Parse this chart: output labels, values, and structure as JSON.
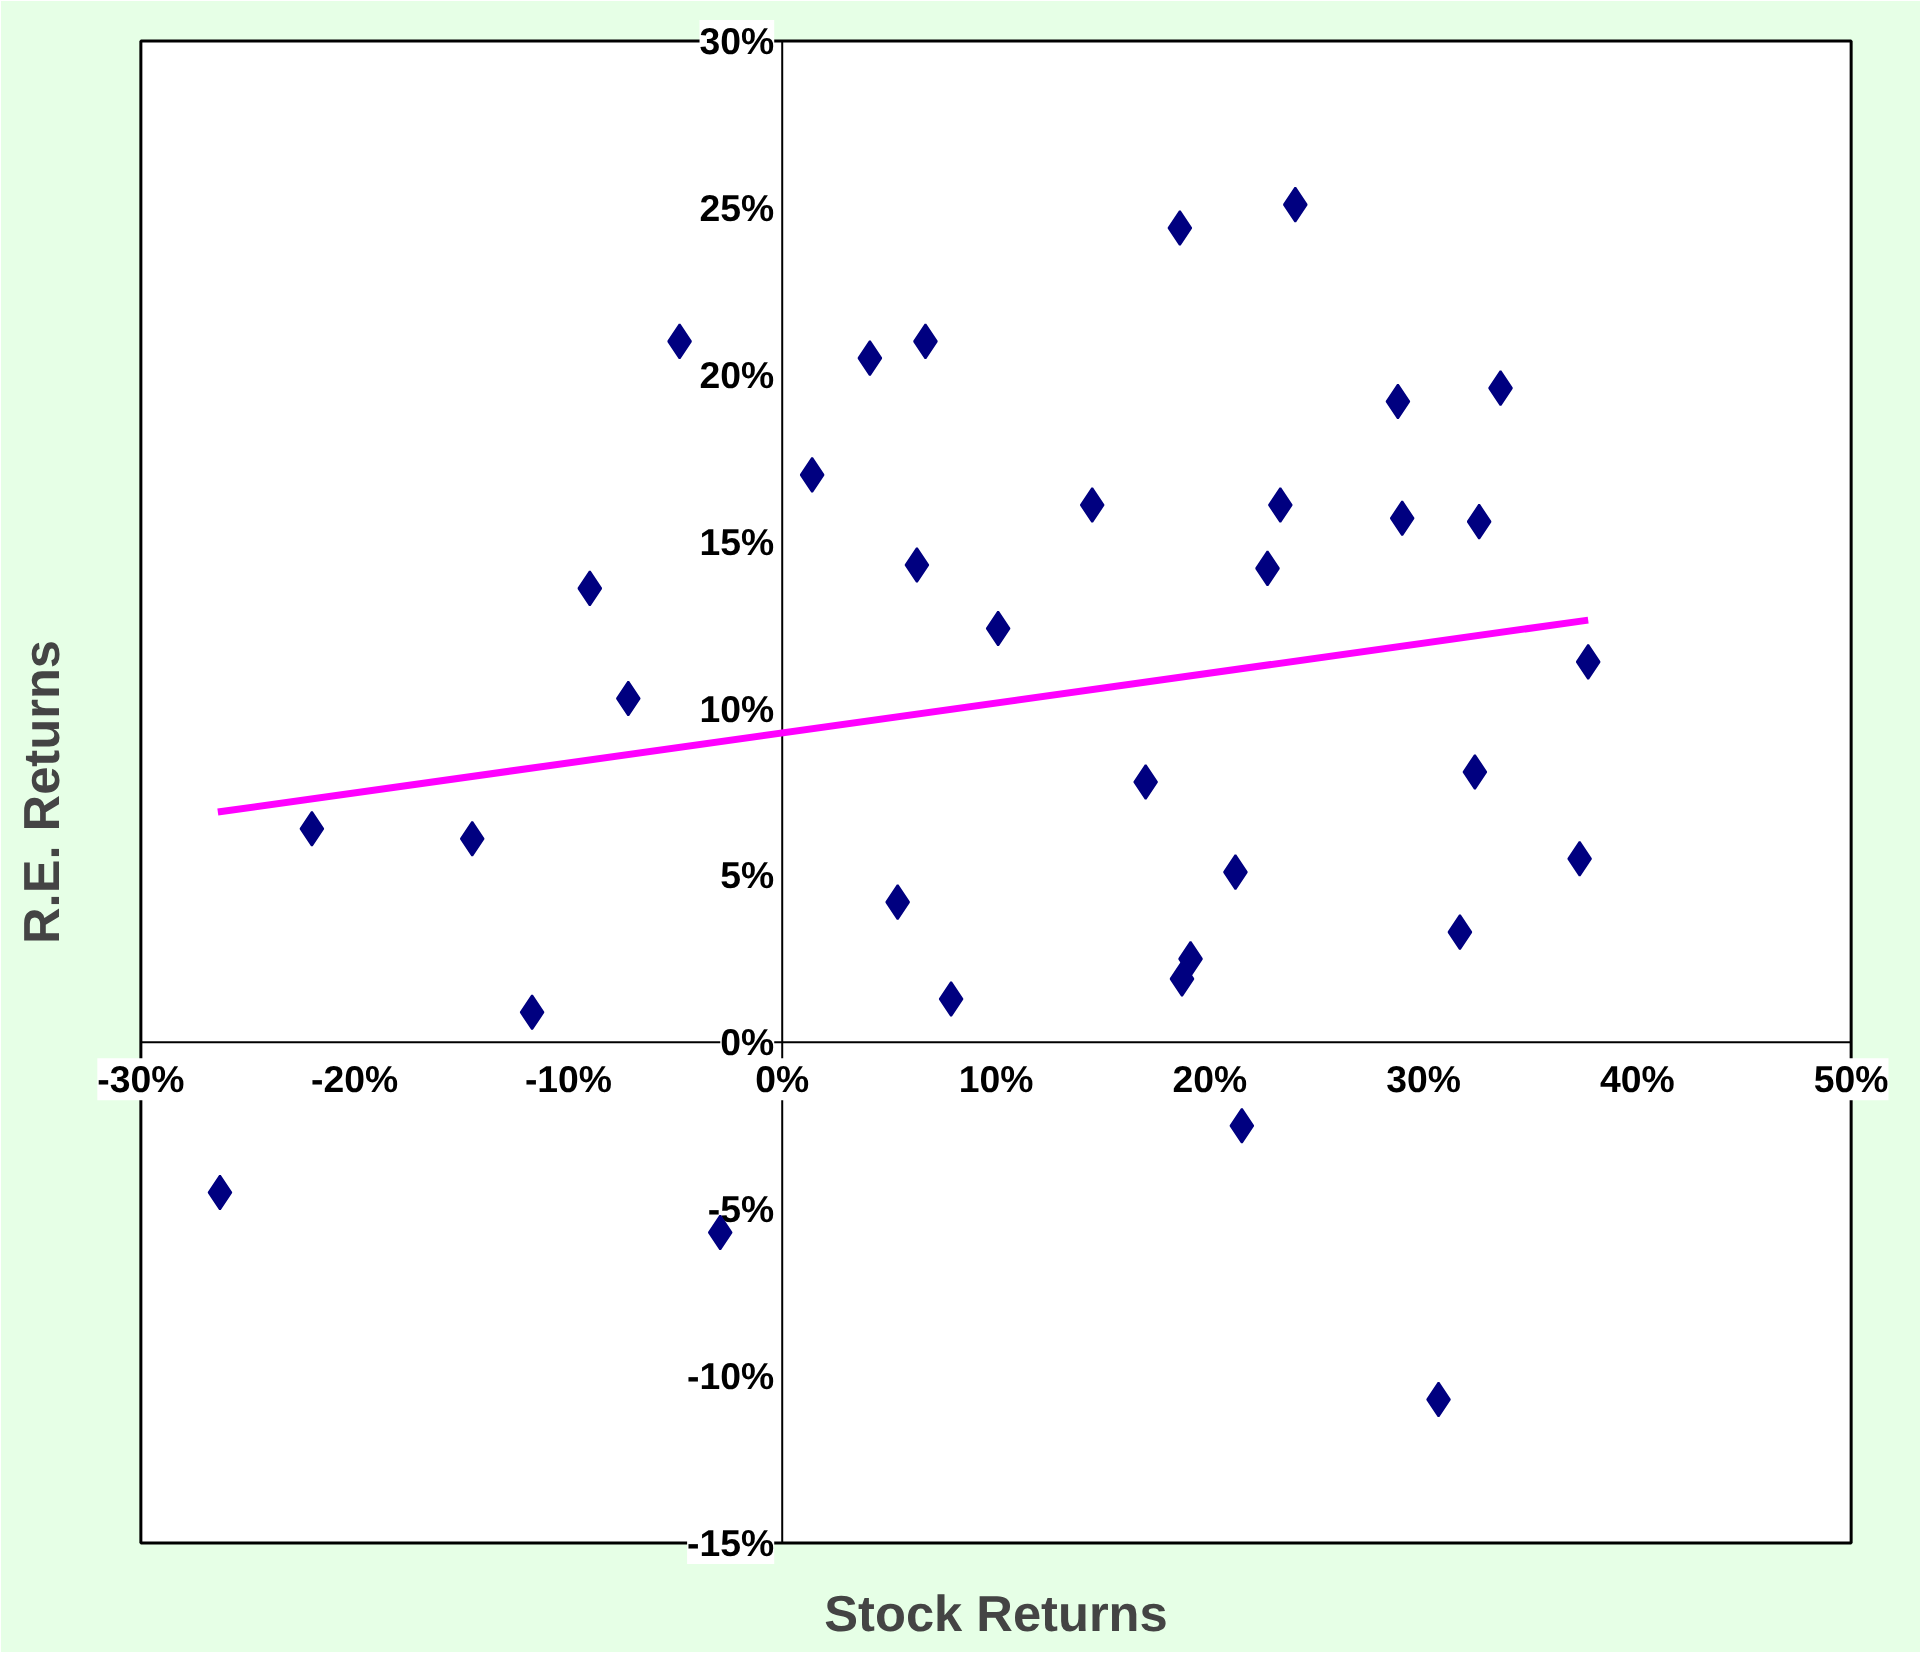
{
  "chart_data": {
    "type": "scatter",
    "xlabel": "Stock Returns",
    "ylabel": "R.E. Returns",
    "xlim": [
      -30,
      50
    ],
    "ylim": [
      -15,
      30
    ],
    "xticks": [
      {
        "value": -30,
        "label": "-30%"
      },
      {
        "value": -20,
        "label": "-20%"
      },
      {
        "value": -10,
        "label": "-10%"
      },
      {
        "value": 0,
        "label": "0%"
      },
      {
        "value": 10,
        "label": "10%"
      },
      {
        "value": 20,
        "label": "20%"
      },
      {
        "value": 30,
        "label": "30%"
      },
      {
        "value": 40,
        "label": "40%"
      },
      {
        "value": 50,
        "label": "50%"
      }
    ],
    "yticks": [
      {
        "value": -15,
        "label": "-15%"
      },
      {
        "value": -10,
        "label": "-10%"
      },
      {
        "value": -5,
        "label": "-5%"
      },
      {
        "value": 0,
        "label": "0%"
      },
      {
        "value": 5,
        "label": "5%"
      },
      {
        "value": 10,
        "label": "10%"
      },
      {
        "value": 15,
        "label": "15%"
      },
      {
        "value": 20,
        "label": "20%"
      },
      {
        "value": 25,
        "label": "25%"
      },
      {
        "value": 30,
        "label": "30%"
      }
    ],
    "grid": false,
    "series": [
      {
        "marker": "diamond",
        "color": "#000080",
        "x": [
          -26.3,
          -22.0,
          -14.5,
          -11.7,
          -9.0,
          -7.2,
          -4.8,
          -2.9,
          1.4,
          4.1,
          5.4,
          6.3,
          6.7,
          7.9,
          10.1,
          14.5,
          17.0,
          18.6,
          18.7,
          19.1,
          21.2,
          21.5,
          22.7,
          23.3,
          24.0,
          28.8,
          29.0,
          30.7,
          31.7,
          32.4,
          32.6,
          33.6,
          37.3,
          37.7
        ],
        "values": [
          -4.5,
          6.4,
          6.1,
          0.9,
          13.6,
          10.3,
          21.0,
          -5.7,
          17.0,
          20.5,
          4.2,
          14.3,
          21.0,
          1.3,
          12.4,
          16.1,
          7.8,
          24.4,
          1.9,
          2.5,
          5.1,
          -2.5,
          14.2,
          16.1,
          25.1,
          19.2,
          15.7,
          -10.7,
          3.3,
          8.1,
          15.6,
          19.6,
          5.5,
          11.4
        ]
      },
      {
        "type": "line",
        "color": "#ff00ff",
        "x": [
          -26.4,
          37.7
        ],
        "values": [
          6.9,
          12.65
        ]
      }
    ]
  }
}
